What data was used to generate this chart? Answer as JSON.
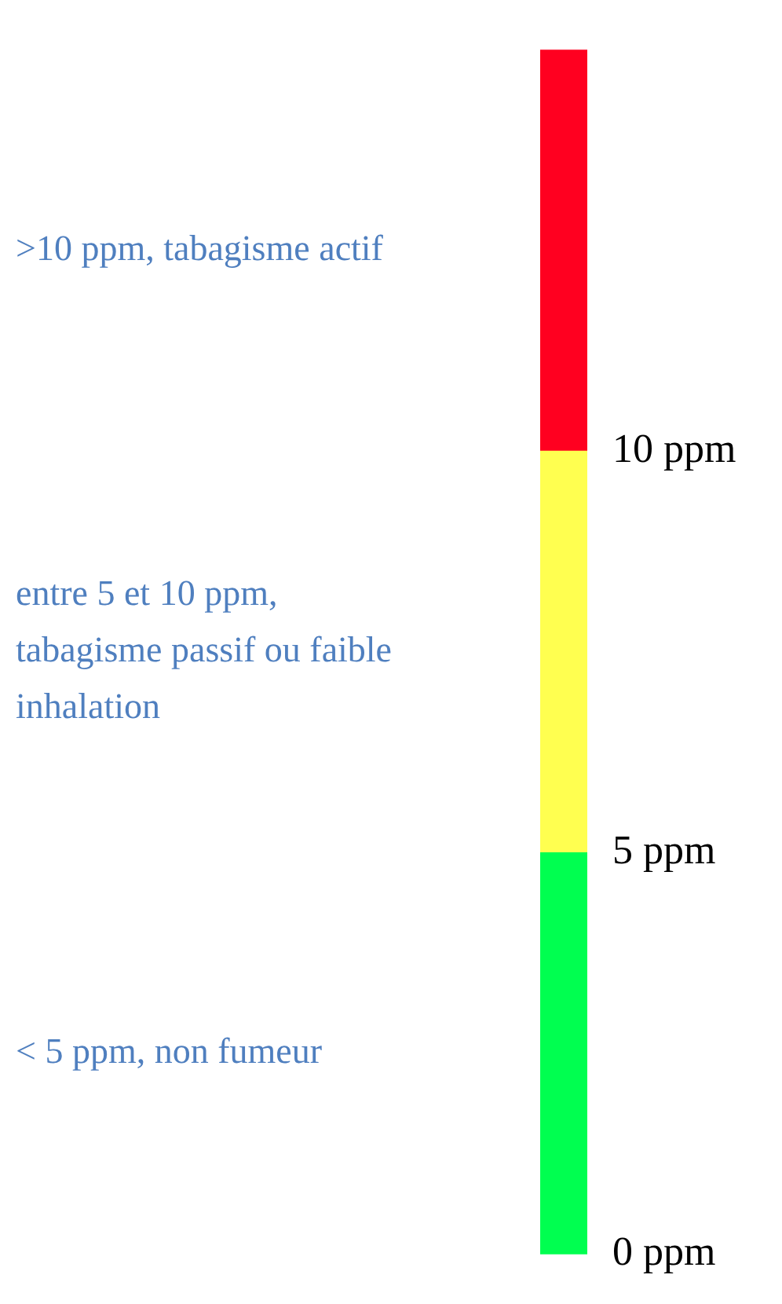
{
  "chart_data": {
    "type": "bar",
    "stacked": true,
    "categories": [
      null
    ],
    "series": [
      {
        "color": "#00ff50",
        "values": [
          5
        ]
      },
      {
        "color": "#ffff50",
        "values": [
          5
        ]
      },
      {
        "color": "#ff0020",
        "values": [
          5
        ]
      }
    ],
    "annotations": [
      ">10 ppm, tabagisme actif",
      "entre 5 et 10 ppm, tabagisme passif ou faible inhalation",
      "< 5 ppm, non fumeur"
    ],
    "ylim": [
      0,
      15
    ],
    "yticks": [
      {
        "value": 0,
        "label": "0 ppm"
      },
      {
        "value": 5,
        "label": "5 ppm"
      },
      {
        "value": 10,
        "label": "10 ppm"
      }
    ]
  }
}
